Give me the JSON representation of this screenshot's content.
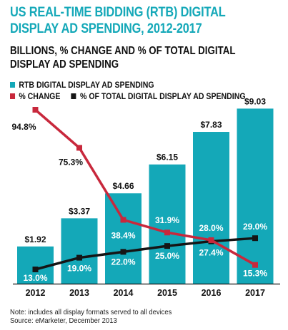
{
  "colors": {
    "bar": "#14a8b8",
    "change_line": "#c8283c",
    "share_line": "#151515",
    "title": "#14a8b8"
  },
  "chart_data": {
    "type": "bar",
    "title": "US REAL-TIME BIDDING (RTB) DIGITAL DISPLAY AD SPENDING, 2012-2017",
    "subtitle": "BILLIONS, % CHANGE AND % OF TOTAL DIGITAL DISPLAY AD SPENDING",
    "categories": [
      "2012",
      "2013",
      "2014",
      "2015",
      "2016",
      "2017"
    ],
    "series": [
      {
        "name": "RTB DIGITAL DISPLAY AD SPENDING",
        "type": "bar",
        "values": [
          1.92,
          3.37,
          4.66,
          6.15,
          7.83,
          9.03
        ],
        "labels": [
          "$1.92",
          "$3.37",
          "$4.66",
          "$6.15",
          "$7.83",
          "$9.03"
        ]
      },
      {
        "name": "% CHANGE",
        "type": "line",
        "values": [
          94.8,
          75.3,
          38.4,
          31.9,
          28.0,
          15.3
        ],
        "labels": [
          "94.8%",
          "75.3%",
          "38.4%",
          "31.9%",
          "28.0%",
          "15.3%"
        ]
      },
      {
        "name": "% OF TOTAL DIGITAL DISPLAY AD SPENDING",
        "type": "line",
        "values": [
          13.0,
          19.0,
          22.0,
          25.0,
          27.4,
          29.0
        ],
        "labels": [
          "13.0%",
          "19.0%",
          "22.0%",
          "25.0%",
          "27.4%",
          "29.0%"
        ]
      }
    ],
    "grid": false,
    "legend_position": "top-left"
  },
  "note": "Note: includes all display formats served to all devices",
  "source": "Source: eMarketer, December 2013"
}
